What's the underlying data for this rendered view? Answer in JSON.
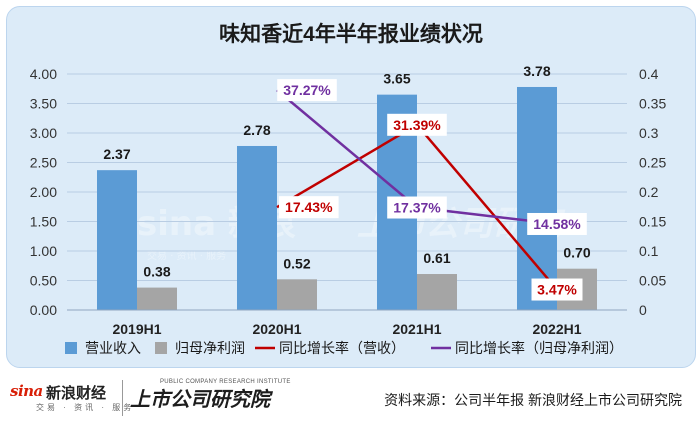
{
  "chart_data": {
    "type": "bar",
    "title": "味知香近4年半年报业绩状况",
    "categories": [
      "2019H1",
      "2020H1",
      "2021H1",
      "2022H1"
    ],
    "y_left": {
      "ticks": [
        "0.00",
        "0.50",
        "1.00",
        "1.50",
        "2.00",
        "2.50",
        "3.00",
        "3.50",
        "4.00"
      ],
      "lim": [
        0,
        4
      ]
    },
    "y_right": {
      "ticks": [
        "0",
        "0.05",
        "0.1",
        "0.15",
        "0.2",
        "0.25",
        "0.3",
        "0.35",
        "0.4"
      ],
      "lim": [
        0,
        0.4
      ]
    },
    "grid": true,
    "legend_position": "bottom",
    "bar_series": [
      {
        "name": "营业收入",
        "values": [
          2.37,
          2.78,
          3.65,
          3.78
        ],
        "labels": [
          "2.37",
          "2.78",
          "3.65",
          "3.78"
        ],
        "color": "#5b9bd5"
      },
      {
        "name": "归母净利润",
        "values": [
          0.38,
          0.52,
          0.61,
          0.7
        ],
        "labels": [
          "0.38",
          "0.52",
          "0.61",
          "0.70"
        ],
        "color": "#a5a5a5"
      }
    ],
    "line_series": [
      {
        "name": "同比增长率（营收）",
        "values": [
          null,
          0.1743,
          0.3139,
          0.0347
        ],
        "labels": [
          null,
          "17.43%",
          "31.39%",
          "3.47%"
        ],
        "color": "#c00000"
      },
      {
        "name": "同比增长率（归母净利润）",
        "values": [
          null,
          0.3727,
          0.1737,
          0.1458
        ],
        "labels": [
          null,
          "37.27%",
          "17.37%",
          "14.58%"
        ],
        "color": "#7030a0"
      }
    ]
  },
  "watermark": {
    "brand": "sina 新浪",
    "sub": "交易 · 资讯 · 服务",
    "research": "上市公司研究"
  },
  "footer": {
    "sina_logo": "sina",
    "sina_logo_cn": "新浪财经",
    "sina_sub": "交易 · 资讯 · 服务",
    "research_logo": "上市公司研究院",
    "research_sub": "PUBLIC COMPANY RESEARCH INSTITUTE",
    "source": "资料来源：公司半年报 新浪财经上市公司研究院"
  },
  "colors": {
    "panel_bg": "#dcebf8",
    "title": "#1a1a1a",
    "grid": "#b9cde3"
  }
}
